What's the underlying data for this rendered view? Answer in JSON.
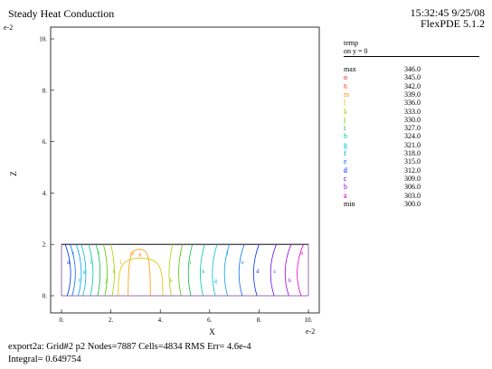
{
  "header": {
    "title": "Steady Heat Conduction",
    "time": "15:32:45 9/25/08",
    "software": "FlexPDE 5.1.2"
  },
  "legend": {
    "title": "temp",
    "subtitle": "on y = 0",
    "items": [
      {
        "key": "max",
        "value": "346.0",
        "color": "#000000"
      },
      {
        "key": "o :",
        "value": "345.0",
        "color": "#ff0000"
      },
      {
        "key": "n :",
        "value": "342.0",
        "color": "#ff5a00"
      },
      {
        "key": "m :",
        "value": "339.0",
        "color": "#ff9900"
      },
      {
        "key": "l :",
        "value": "336.0",
        "color": "#e0c000"
      },
      {
        "key": "k :",
        "value": "333.0",
        "color": "#a8d000"
      },
      {
        "key": "j :",
        "value": "330.0",
        "color": "#50c800"
      },
      {
        "key": "i :",
        "value": "327.0",
        "color": "#00c040"
      },
      {
        "key": "h :",
        "value": "324.0",
        "color": "#00c8a0"
      },
      {
        "key": "g :",
        "value": "321.0",
        "color": "#00c0d8"
      },
      {
        "key": "f :",
        "value": "318.0",
        "color": "#00a0e8"
      },
      {
        "key": "e :",
        "value": "315.0",
        "color": "#0070f0"
      },
      {
        "key": "d :",
        "value": "312.0",
        "color": "#0030f0"
      },
      {
        "key": "c :",
        "value": "309.0",
        "color": "#6010e0"
      },
      {
        "key": "b :",
        "value": "306.0",
        "color": "#a000e0"
      },
      {
        "key": "a :",
        "value": "303.0",
        "color": "#e000c0"
      },
      {
        "key": "min",
        "value": "300.0",
        "color": "#000000"
      }
    ]
  },
  "footer": {
    "line1": "export2a:  Grid#2  p2  Nodes=7887 Cells=4834 RMS Err= 4.6e-4",
    "line2": "Integral=  0.649754"
  },
  "chart_data": {
    "type": "contour",
    "xlabel": "X",
    "ylabel": "Z",
    "x_exponent": "e-2",
    "y_exponent": "e-2",
    "xlim": [
      0,
      10
    ],
    "ylim": [
      0,
      10
    ],
    "x_ticks": [
      "0.",
      "2.",
      "4.",
      "6.",
      "8.",
      "10."
    ],
    "y_ticks": [
      "0.",
      "2.",
      "4.",
      "6.",
      "8.",
      "10."
    ],
    "domain": {
      "x": [
        0,
        10
      ],
      "z": [
        0,
        2
      ]
    },
    "hot_spot": {
      "x": 3.2,
      "z": 1.6,
      "label": "n"
    },
    "contours": [
      {
        "label": "m",
        "positions": [
          2.7,
          3.6
        ]
      },
      {
        "label": "l",
        "positions": [
          2.3,
          4.1
        ]
      },
      {
        "label": "k",
        "positions": [
          2.0,
          4.5
        ]
      },
      {
        "label": "j",
        "positions": [
          1.7,
          4.9
        ]
      },
      {
        "label": "i",
        "positions": [
          1.4,
          5.3
        ]
      },
      {
        "label": "h",
        "positions": [
          1.1,
          5.8
        ]
      },
      {
        "label": "g",
        "positions": [
          0.8,
          6.3
        ]
      },
      {
        "label": "f",
        "positions": [
          0.6,
          6.8
        ]
      },
      {
        "label": "e",
        "positions": [
          0.35,
          7.4
        ]
      },
      {
        "label": "d",
        "positions": [
          0.15,
          8.0
        ]
      },
      {
        "label": "c",
        "positions": [
          8.7
        ]
      },
      {
        "label": "b",
        "positions": [
          9.3
        ]
      },
      {
        "label": "a",
        "positions": [
          9.8
        ]
      }
    ]
  }
}
